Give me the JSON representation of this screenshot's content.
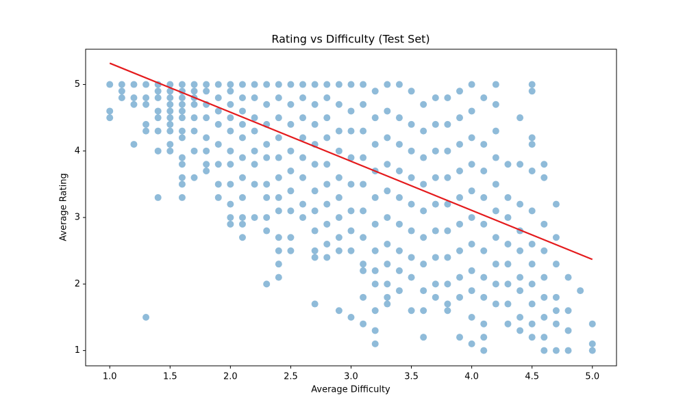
{
  "chart_data": {
    "type": "scatter",
    "title": "Rating vs Difficulty (Test Set)",
    "x_label": "Average Difficulty",
    "y_label": "Average Rating",
    "xlim": [
      0.8,
      5.2
    ],
    "ylim": [
      0.77,
      5.53
    ],
    "xticks": [
      {
        "value": 1,
        "label": "1.0"
      },
      1.5,
      {
        "value": 2,
        "label": "2.0"
      },
      2.5,
      {
        "value": 3,
        "label": "3.0"
      },
      3.5,
      {
        "value": 4,
        "label": "4.0"
      },
      4.5,
      {
        "value": 5,
        "label": "5.0"
      }
    ],
    "yticks": [
      1,
      2,
      3,
      4,
      5
    ],
    "grid": false,
    "color": "#1f77b4",
    "x": [
      1,
      1,
      1,
      1.1,
      1.1,
      1.1,
      1.2,
      1.2,
      1.2,
      1.2,
      1.3,
      1.3,
      1.3,
      1.3,
      1.3,
      1.3,
      1.4,
      1.4,
      1.4,
      1.4,
      1.4,
      1.4,
      1.4,
      1.4,
      1.5,
      1.5,
      1.5,
      1.5,
      1.5,
      1.5,
      1.5,
      1.5,
      1.5,
      1.5,
      1.6,
      1.6,
      1.6,
      1.6,
      1.6,
      1.6,
      1.6,
      1.6,
      1.6,
      1.6,
      1.6,
      1.6,
      1.6,
      1.7,
      1.7,
      1.7,
      1.7,
      1.7,
      1.7,
      1.7,
      1.7,
      1.8,
      1.8,
      1.8,
      1.8,
      1.8,
      1.8,
      1.8,
      1.8,
      1.9,
      1.9,
      1.9,
      1.9,
      1.9,
      1.9,
      1.9,
      1.9,
      2,
      2,
      2,
      2,
      2,
      2,
      2,
      2,
      2,
      2,
      2,
      2.1,
      2.1,
      2.1,
      2.1,
      2.1,
      2.1,
      2.1,
      2.1,
      2.1,
      2.1,
      2.1,
      2.2,
      2.2,
      2.2,
      2.2,
      2.2,
      2.2,
      2.2,
      2.2,
      2.3,
      2.3,
      2.3,
      2.3,
      2.3,
      2.3,
      2.3,
      2.3,
      2.3,
      2.3,
      2.4,
      2.4,
      2.4,
      2.4,
      2.4,
      2.4,
      2.4,
      2.4,
      2.4,
      2.4,
      2.4,
      2.4,
      2.5,
      2.5,
      2.5,
      2.5,
      2.5,
      2.5,
      2.5,
      2.5,
      2.5,
      2.6,
      2.6,
      2.6,
      2.6,
      2.6,
      2.6,
      2.6,
      2.6,
      2.7,
      2.7,
      2.7,
      2.7,
      2.7,
      2.7,
      2.7,
      2.7,
      2.7,
      2.7,
      2.7,
      2.8,
      2.8,
      2.8,
      2.8,
      2.8,
      2.8,
      2.8,
      2.8,
      2.8,
      2.8,
      2.9,
      2.9,
      2.9,
      2.9,
      2.9,
      2.9,
      2.9,
      2.9,
      2.9,
      2.9,
      3,
      3,
      3,
      3,
      3,
      3,
      3,
      3,
      3,
      3.1,
      3.1,
      3.1,
      3.1,
      3.1,
      3.1,
      3.1,
      3.1,
      3.1,
      3.1,
      3.1,
      3.2,
      3.2,
      3.2,
      3.2,
      3.2,
      3.2,
      3.2,
      3.2,
      3.2,
      3.2,
      3.2,
      3.2,
      3.3,
      3.3,
      3.3,
      3.3,
      3.3,
      3.3,
      3.3,
      3.3,
      3.3,
      3.3,
      3.3,
      3.4,
      3.4,
      3.4,
      3.4,
      3.4,
      3.4,
      3.4,
      3.4,
      3.4,
      3.5,
      3.5,
      3.5,
      3.5,
      3.5,
      3.5,
      3.5,
      3.5,
      3.5,
      3.6,
      3.6,
      3.6,
      3.6,
      3.6,
      3.6,
      3.6,
      3.6,
      3.6,
      3.6,
      3.7,
      3.7,
      3.7,
      3.7,
      3.7,
      3.7,
      3.7,
      3.7,
      3.7,
      3.8,
      3.8,
      3.8,
      3.8,
      3.8,
      3.8,
      3.8,
      3.8,
      3.8,
      3.8,
      3.9,
      3.9,
      3.9,
      3.9,
      3.9,
      3.9,
      3.9,
      3.9,
      3.9,
      3.9,
      4,
      4,
      4,
      4,
      4,
      4,
      4,
      4,
      4,
      4,
      4,
      4.1,
      4.1,
      4.1,
      4.1,
      4.1,
      4.1,
      4.1,
      4.1,
      4.1,
      4.1,
      4.1,
      4.2,
      4.2,
      4.2,
      4.2,
      4.2,
      4.2,
      4.2,
      4.2,
      4.2,
      4.2,
      4.3,
      4.3,
      4.3,
      4.3,
      4.3,
      4.3,
      4.3,
      4.3,
      4.4,
      4.4,
      4.4,
      4.4,
      4.4,
      4.4,
      4.4,
      4.4,
      4.4,
      4.5,
      4.5,
      4.5,
      4.5,
      4.5,
      4.5,
      4.5,
      4.5,
      4.5,
      4.5,
      4.5,
      4.5,
      4.6,
      4.6,
      4.6,
      4.6,
      4.6,
      4.6,
      4.6,
      4.6,
      4.6,
      4.7,
      4.7,
      4.7,
      4.7,
      4.7,
      4.7,
      4.7,
      4.8,
      4.8,
      4.8,
      4.8,
      4.9,
      5,
      5,
      5
    ],
    "values": [
      5.0,
      4.6,
      4.5,
      5.0,
      4.9,
      4.8,
      5.0,
      4.8,
      4.7,
      4.1,
      5.0,
      4.8,
      4.7,
      4.4,
      4.3,
      1.5,
      5.0,
      4.9,
      4.8,
      4.6,
      4.5,
      4.3,
      4.0,
      3.3,
      5.0,
      4.9,
      4.8,
      4.7,
      4.6,
      4.5,
      4.4,
      4.3,
      4.1,
      4.0,
      5.0,
      4.9,
      4.8,
      4.7,
      4.6,
      4.5,
      4.3,
      4.2,
      3.9,
      3.8,
      3.6,
      3.5,
      3.3,
      5.0,
      4.9,
      4.8,
      4.7,
      4.5,
      4.3,
      4.0,
      3.6,
      5.0,
      4.9,
      4.7,
      4.5,
      4.2,
      4.0,
      3.8,
      3.7,
      5.0,
      4.8,
      4.6,
      4.4,
      4.1,
      3.8,
      3.5,
      3.3,
      5.0,
      4.9,
      4.7,
      4.5,
      4.3,
      4.0,
      3.8,
      3.5,
      3.2,
      3.0,
      2.9,
      5.0,
      4.8,
      4.6,
      4.4,
      4.2,
      3.9,
      3.6,
      3.3,
      3.0,
      2.9,
      2.7,
      5.0,
      4.8,
      4.5,
      4.3,
      4.0,
      3.8,
      3.5,
      3.0,
      5.0,
      4.7,
      4.4,
      4.1,
      3.9,
      3.5,
      3.3,
      3.0,
      2.8,
      2.0,
      5.0,
      4.8,
      4.5,
      4.2,
      3.9,
      3.6,
      3.3,
      3.1,
      2.7,
      2.5,
      2.3,
      2.1,
      5.0,
      4.7,
      4.4,
      4.0,
      3.7,
      3.4,
      3.1,
      2.7,
      2.5,
      5.0,
      4.8,
      4.5,
      4.2,
      3.9,
      3.6,
      3.2,
      3.0,
      5.0,
      4.7,
      4.4,
      4.1,
      3.8,
      3.4,
      3.1,
      2.8,
      2.5,
      2.4,
      1.7,
      5.0,
      4.8,
      4.5,
      4.2,
      3.8,
      3.5,
      3.2,
      2.9,
      2.6,
      2.4,
      5.0,
      4.7,
      4.3,
      4.0,
      3.6,
      3.3,
      3.0,
      2.7,
      2.5,
      1.6,
      5.0,
      4.6,
      4.3,
      3.9,
      3.5,
      3.1,
      2.8,
      2.5,
      1.5,
      5.0,
      4.7,
      4.3,
      3.9,
      3.5,
      3.1,
      2.7,
      2.3,
      2.2,
      1.8,
      1.4,
      4.9,
      4.5,
      4.1,
      3.7,
      3.3,
      2.9,
      2.5,
      2.2,
      2.0,
      1.6,
      1.3,
      1.1,
      5.0,
      4.6,
      4.2,
      3.8,
      3.4,
      3.0,
      2.6,
      2.3,
      2.0,
      1.8,
      1.7,
      5.0,
      4.5,
      4.1,
      3.7,
      3.3,
      2.9,
      2.5,
      2.2,
      1.9,
      4.9,
      4.4,
      4.0,
      3.6,
      3.2,
      2.8,
      2.4,
      2.1,
      1.6,
      4.7,
      4.3,
      3.9,
      3.5,
      3.1,
      2.7,
      2.3,
      1.9,
      1.6,
      1.2,
      4.8,
      4.4,
      4.0,
      3.6,
      3.2,
      2.8,
      2.4,
      2.0,
      1.8,
      4.8,
      4.4,
      4.0,
      3.6,
      3.2,
      2.8,
      2.4,
      2.0,
      1.7,
      1.6,
      4.9,
      4.5,
      4.1,
      3.7,
      3.3,
      2.9,
      2.5,
      2.1,
      1.8,
      1.2,
      5.0,
      4.6,
      4.2,
      3.8,
      3.4,
      3.0,
      2.6,
      2.2,
      1.9,
      1.5,
      1.1,
      4.8,
      4.1,
      3.7,
      3.3,
      2.9,
      2.5,
      2.1,
      1.8,
      1.4,
      1.2,
      1.0,
      5.0,
      4.7,
      4.3,
      3.9,
      3.5,
      3.1,
      2.7,
      2.3,
      2.0,
      1.7,
      3.8,
      3.3,
      3.0,
      2.6,
      2.3,
      2.0,
      1.7,
      1.4,
      4.5,
      3.8,
      3.2,
      2.8,
      2.5,
      2.1,
      1.9,
      1.5,
      1.3,
      5.0,
      4.9,
      4.2,
      4.1,
      3.7,
      3.1,
      2.6,
      2.3,
      2.0,
      1.7,
      1.4,
      1.2,
      3.8,
      3.6,
      2.9,
      2.5,
      2.1,
      1.8,
      1.5,
      1.2,
      1.0,
      3.2,
      2.7,
      2.3,
      1.8,
      1.6,
      1.4,
      1.0,
      2.1,
      1.6,
      1.3,
      1.0,
      1.9,
      1.4,
      1.1,
      1.0
    ],
    "fit_line": {
      "x": [
        1,
        5
      ],
      "y": [
        5.32,
        2.37
      ],
      "color": "#e41a1c"
    }
  }
}
